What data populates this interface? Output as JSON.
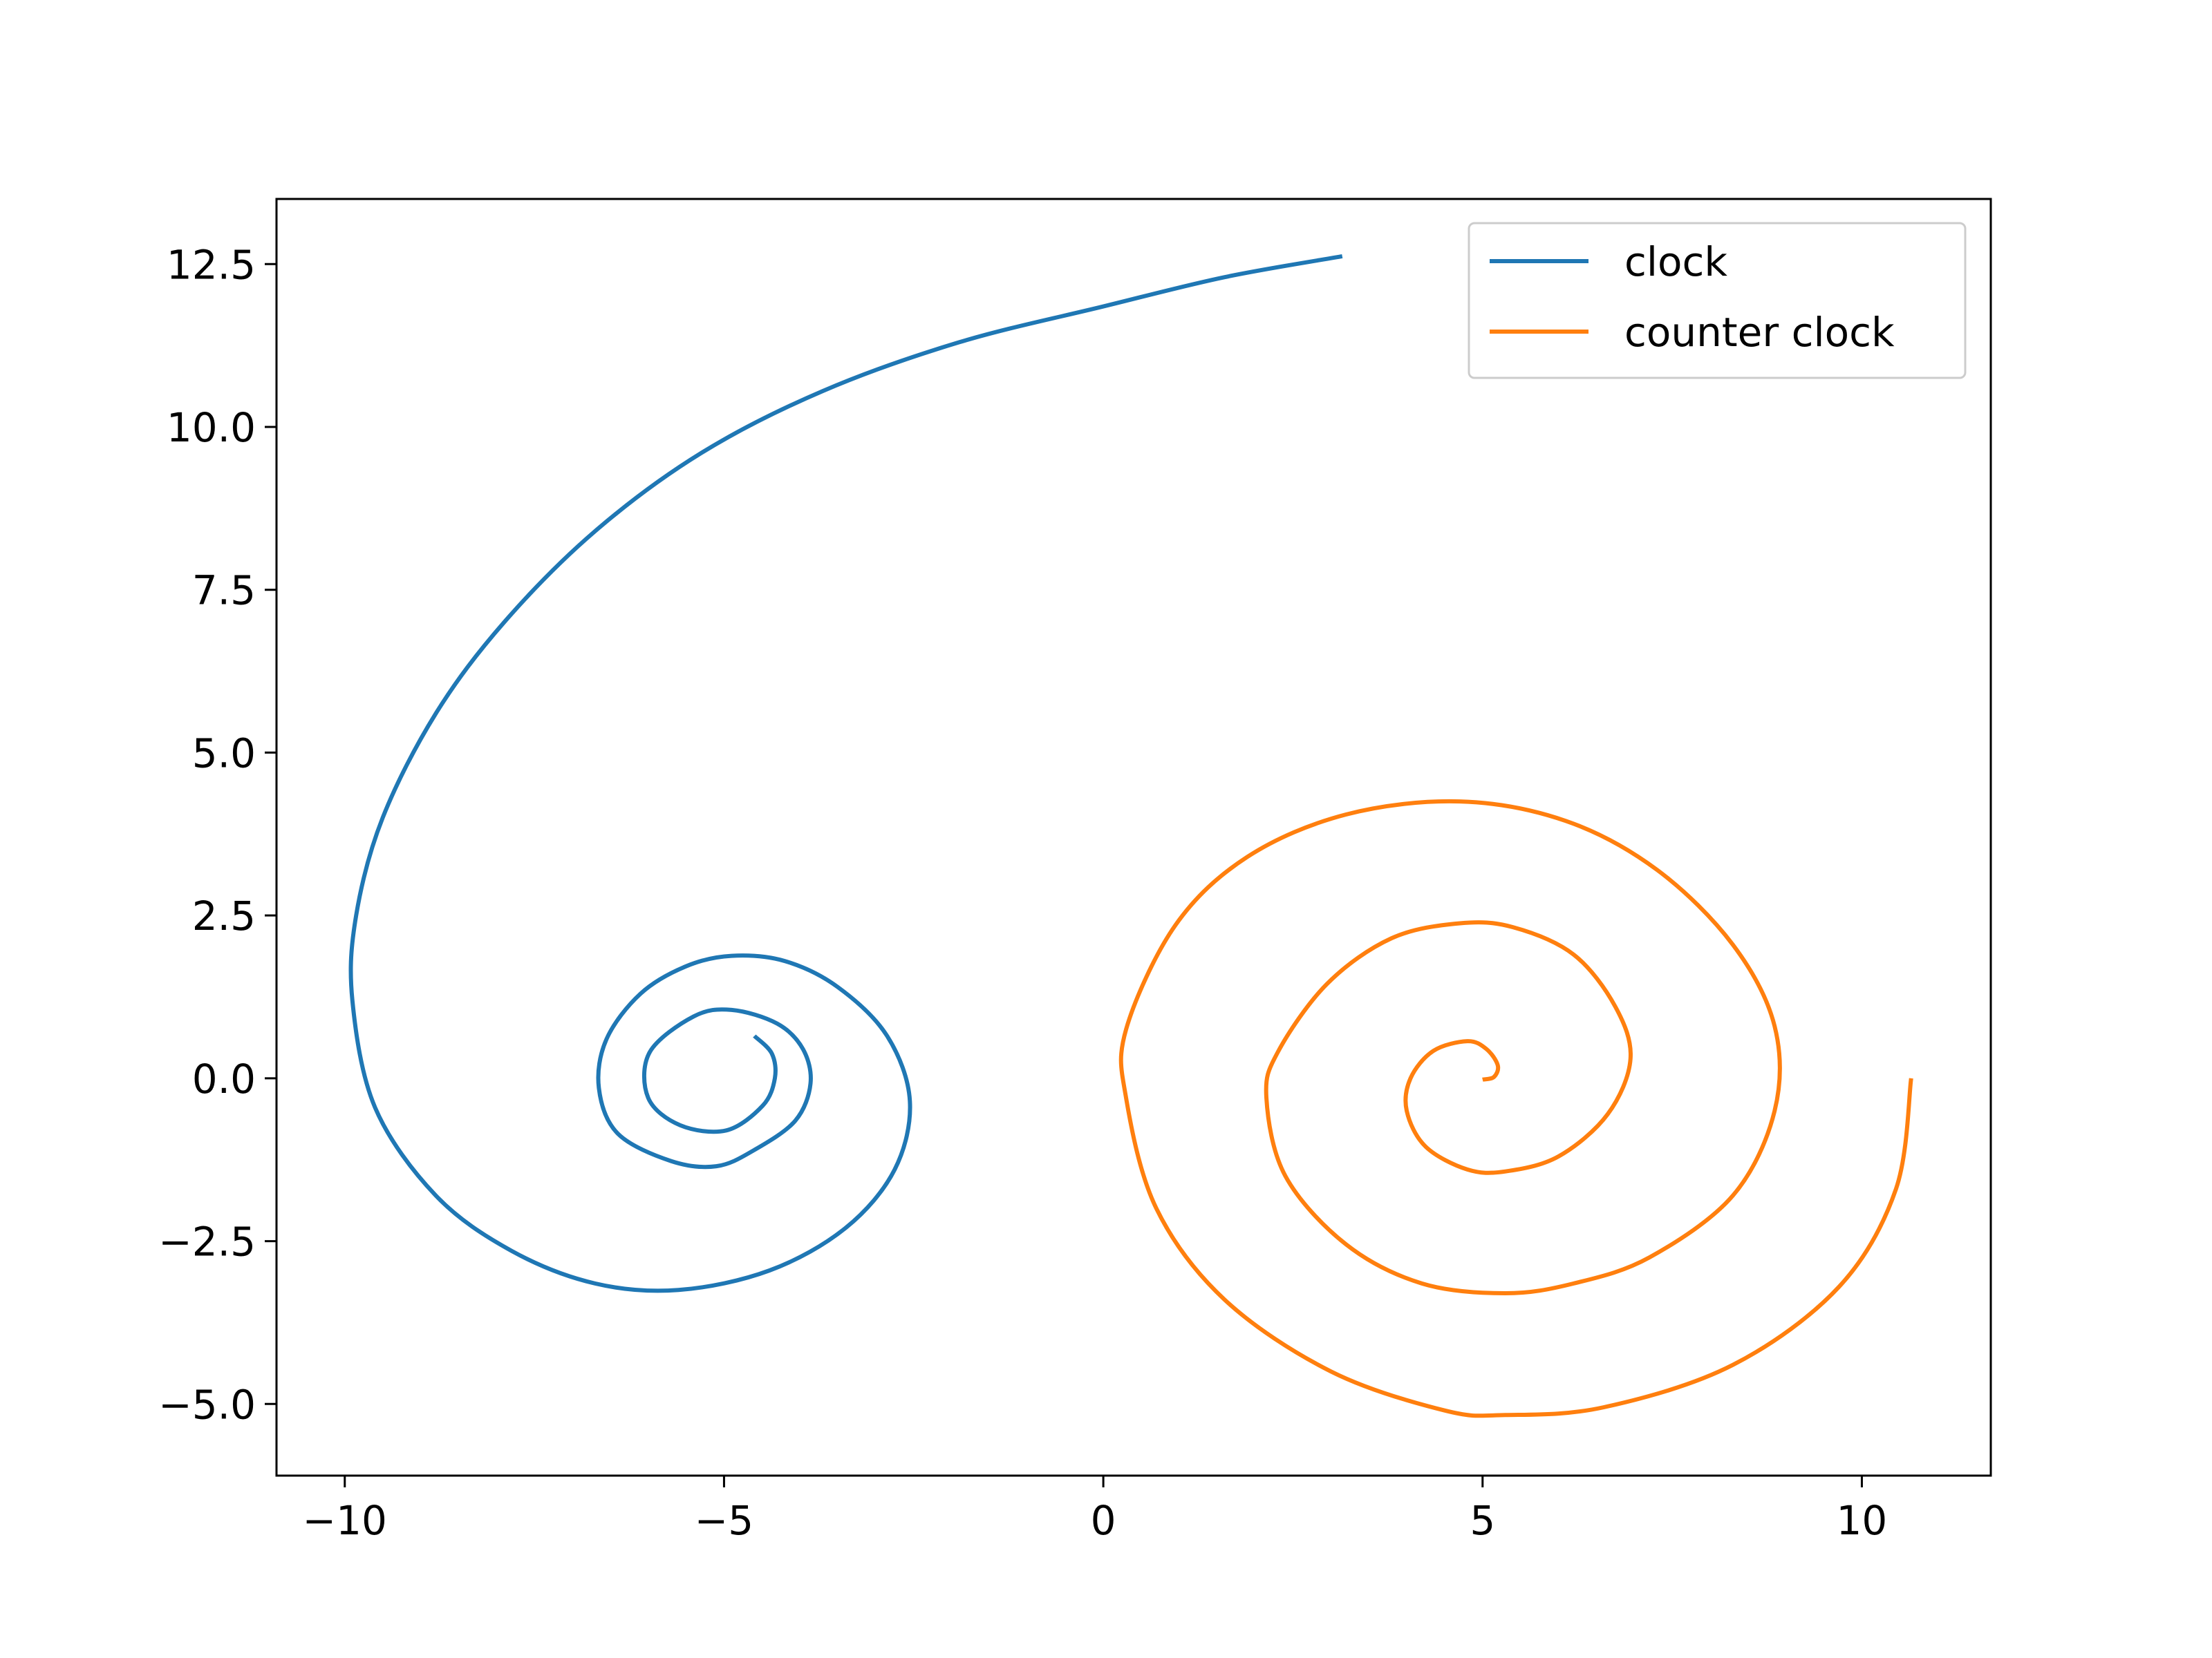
{
  "chart_data": {
    "type": "line",
    "title": "",
    "xlabel": "",
    "ylabel": "",
    "xlim": [
      -10.9,
      11.7
    ],
    "ylim": [
      -6.1,
      13.5
    ],
    "x_ticks": [
      -10,
      -5,
      0,
      5,
      10
    ],
    "x_tick_labels": [
      "−10",
      "−5",
      "0",
      "5",
      "10"
    ],
    "y_ticks": [
      -5.0,
      -2.5,
      0.0,
      2.5,
      5.0,
      7.5,
      10.0,
      12.5
    ],
    "y_tick_labels": [
      "−5.0",
      "−2.5",
      "0.0",
      "2.5",
      "5.0",
      "7.5",
      "10.0",
      "12.5"
    ],
    "grid": false,
    "legend_position": "top-right",
    "series": [
      {
        "name": "clock",
        "color": "#1f77b4",
        "points": [
          [
            -4.6,
            0.65
          ],
          [
            -4.37,
            0.38
          ],
          [
            -4.33,
            0.0
          ],
          [
            -4.49,
            -0.42
          ],
          [
            -4.97,
            -0.8
          ],
          [
            -5.58,
            -0.72
          ],
          [
            -6.0,
            -0.3
          ],
          [
            -5.98,
            0.4
          ],
          [
            -5.4,
            0.95
          ],
          [
            -4.9,
            1.05
          ],
          [
            -4.3,
            0.84
          ],
          [
            -3.96,
            0.45
          ],
          [
            -3.86,
            -0.08
          ],
          [
            -4.06,
            -0.65
          ],
          [
            -4.6,
            -1.1
          ],
          [
            -5.1,
            -1.35
          ],
          [
            -5.7,
            -1.27
          ],
          [
            -6.4,
            -0.85
          ],
          [
            -6.65,
            -0.15
          ],
          [
            -6.55,
            0.6
          ],
          [
            -6.1,
            1.3
          ],
          [
            -5.5,
            1.72
          ],
          [
            -4.9,
            1.88
          ],
          [
            -4.2,
            1.8
          ],
          [
            -3.5,
            1.4
          ],
          [
            -2.85,
            0.65
          ],
          [
            -2.55,
            -0.35
          ],
          [
            -2.75,
            -1.4
          ],
          [
            -3.4,
            -2.3
          ],
          [
            -4.4,
            -2.95
          ],
          [
            -5.6,
            -3.25
          ],
          [
            -6.7,
            -3.15
          ],
          [
            -7.8,
            -2.65
          ],
          [
            -8.8,
            -1.8
          ],
          [
            -9.6,
            -0.45
          ],
          [
            -9.9,
            1.2
          ],
          [
            -9.85,
            2.5
          ],
          [
            -9.5,
            4.0
          ],
          [
            -8.8,
            5.6
          ],
          [
            -7.9,
            7.0
          ],
          [
            -6.7,
            8.4
          ],
          [
            -5.3,
            9.6
          ],
          [
            -3.7,
            10.55
          ],
          [
            -1.9,
            11.3
          ],
          [
            0.0,
            11.85
          ],
          [
            1.6,
            12.3
          ],
          [
            3.15,
            12.62
          ]
        ]
      },
      {
        "name": "counter clock",
        "color": "#ff7f0e",
        "points": [
          [
            5.0,
            -0.02
          ],
          [
            5.15,
            0.02
          ],
          [
            5.2,
            0.2
          ],
          [
            5.05,
            0.45
          ],
          [
            4.8,
            0.57
          ],
          [
            4.35,
            0.42
          ],
          [
            4.05,
            0.0
          ],
          [
            4.0,
            -0.5
          ],
          [
            4.25,
            -1.05
          ],
          [
            4.8,
            -1.4
          ],
          [
            5.3,
            -1.43
          ],
          [
            6.0,
            -1.2
          ],
          [
            6.65,
            -0.55
          ],
          [
            6.95,
            0.3
          ],
          [
            6.75,
            1.1
          ],
          [
            6.2,
            1.9
          ],
          [
            5.4,
            2.32
          ],
          [
            4.7,
            2.38
          ],
          [
            3.8,
            2.15
          ],
          [
            2.95,
            1.45
          ],
          [
            2.3,
            0.4
          ],
          [
            2.15,
            -0.3
          ],
          [
            2.4,
            -1.5
          ],
          [
            3.2,
            -2.55
          ],
          [
            4.2,
            -3.15
          ],
          [
            5.3,
            -3.3
          ],
          [
            6.2,
            -3.15
          ],
          [
            7.2,
            -2.75
          ],
          [
            8.3,
            -1.8
          ],
          [
            8.85,
            -0.5
          ],
          [
            8.85,
            0.8
          ],
          [
            8.3,
            2.05
          ],
          [
            7.3,
            3.2
          ],
          [
            6.1,
            3.95
          ],
          [
            4.7,
            4.25
          ],
          [
            3.2,
            4.05
          ],
          [
            1.9,
            3.4
          ],
          [
            0.95,
            2.35
          ],
          [
            0.3,
            0.75
          ],
          [
            0.3,
            -0.3
          ],
          [
            0.7,
            -2.0
          ],
          [
            1.6,
            -3.4
          ],
          [
            3.0,
            -4.5
          ],
          [
            4.5,
            -5.1
          ],
          [
            5.3,
            -5.17
          ],
          [
            6.6,
            -5.05
          ],
          [
            8.3,
            -4.4
          ],
          [
            9.7,
            -3.2
          ],
          [
            10.45,
            -1.7
          ],
          [
            10.65,
            0.0
          ]
        ]
      }
    ]
  }
}
